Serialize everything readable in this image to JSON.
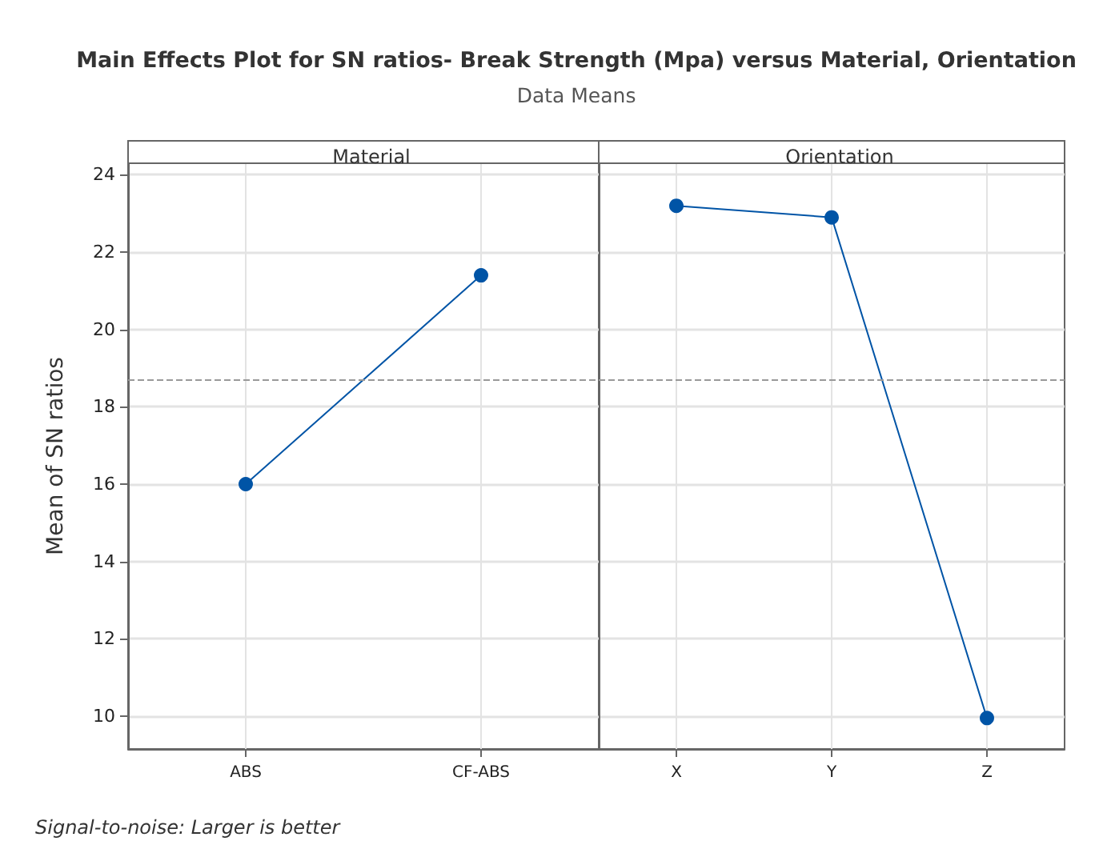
{
  "chart_data": [
    {
      "type": "line",
      "title": "Material",
      "ylabel": "Mean of SN ratios",
      "categories": [
        "ABS",
        "CF-ABS"
      ],
      "series": [
        {
          "color": "#0054a6",
          "values": [
            16.0,
            21.4
          ]
        }
      ],
      "ylim": [
        9.15,
        24.3
      ],
      "yticks": [
        10,
        12,
        14,
        16,
        18,
        20,
        22,
        24
      ],
      "grid": true,
      "marker": "circle",
      "line_style": "solid",
      "ref_lines": [
        {
          "axis": "y",
          "value": 18.7,
          "color": "#999999",
          "line_style": "dashed"
        }
      ],
      "annotations": [
        "Main Effects Plot for SN ratios- Break Strength (Mpa) versus Material, Orientation",
        "Data Means",
        "Signal-to-noise: Larger is better"
      ]
    },
    {
      "type": "line",
      "title": "Orientation",
      "categories": [
        "X",
        "Y",
        "Z"
      ],
      "series": [
        {
          "color": "#0054a6",
          "values": [
            23.2,
            22.9,
            9.95
          ]
        }
      ],
      "ylim": [
        9.15,
        24.3
      ],
      "yticks": [
        10,
        12,
        14,
        16,
        18,
        20,
        22,
        24
      ],
      "tick_labels": "x",
      "grid": true,
      "marker": "circle",
      "line_style": "solid",
      "ref_lines": [
        {
          "axis": "y",
          "value": 18.7,
          "color": "#999999",
          "line_style": "dashed"
        }
      ]
    }
  ]
}
